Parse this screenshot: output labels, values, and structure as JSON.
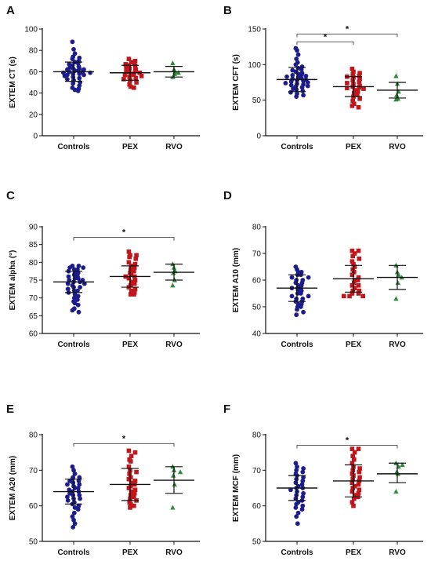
{
  "colors": {
    "Controls": "#1c1c8c",
    "PEX": "#c0171c",
    "RVO": "#2e8b3a",
    "axis": "#111111"
  },
  "marker_shapes": {
    "Controls": "circle",
    "PEX": "square",
    "RVO": "triangle"
  },
  "chart_data": [
    {
      "type": "scatter",
      "panel": "A",
      "ylabel": "EXTEM CT (s)",
      "categories": [
        "Controls",
        "PEX",
        "RVO"
      ],
      "ylim": [
        0,
        100
      ],
      "yticks": [
        0,
        20,
        40,
        60,
        80,
        100
      ],
      "series": [
        {
          "name": "Controls",
          "mean": 60,
          "sd_low": 51,
          "sd_high": 69,
          "values": [
            88,
            81,
            77,
            74,
            73,
            72,
            70,
            69,
            68,
            67,
            66,
            65,
            64,
            63,
            63,
            62,
            62,
            61,
            61,
            60,
            60,
            59,
            59,
            58,
            58,
            57,
            57,
            56,
            55,
            54,
            53,
            52,
            50,
            49,
            47,
            45,
            44,
            43,
            42
          ]
        },
        {
          "name": "PEX",
          "mean": 59,
          "sd_low": 52,
          "sd_high": 66,
          "values": [
            72,
            70,
            69,
            68,
            67,
            66,
            65,
            64,
            63,
            62,
            61,
            61,
            60,
            59,
            58,
            57,
            57,
            56,
            55,
            54,
            53,
            52,
            50,
            48,
            46,
            45
          ]
        },
        {
          "name": "RVO",
          "mean": 60,
          "sd_low": 55,
          "sd_high": 65,
          "values": [
            68,
            62,
            60,
            59,
            58,
            55
          ]
        }
      ],
      "significance": []
    },
    {
      "type": "scatter",
      "panel": "B",
      "ylabel": "EXTEM CFT (s)",
      "categories": [
        "Controls",
        "PEX",
        "RVO"
      ],
      "ylim": [
        0,
        150
      ],
      "yticks": [
        0,
        50,
        100,
        150
      ],
      "series": [
        {
          "name": "Controls",
          "mean": 79,
          "sd_low": 62,
          "sd_high": 96,
          "values": [
            123,
            120,
            114,
            108,
            103,
            100,
            97,
            95,
            93,
            92,
            90,
            88,
            87,
            86,
            85,
            84,
            83,
            82,
            81,
            80,
            79,
            78,
            77,
            76,
            75,
            74,
            73,
            72,
            71,
            70,
            69,
            68,
            66,
            65,
            63,
            61,
            59,
            57,
            55
          ]
        },
        {
          "name": "PEX",
          "mean": 69,
          "sd_low": 55,
          "sd_high": 83,
          "values": [
            94,
            90,
            88,
            86,
            84,
            83,
            82,
            80,
            78,
            76,
            74,
            72,
            70,
            69,
            68,
            67,
            66,
            64,
            62,
            60,
            58,
            55,
            52,
            49,
            45,
            42,
            40
          ]
        },
        {
          "name": "RVO",
          "mean": 64,
          "sd_low": 53,
          "sd_high": 75,
          "values": [
            84,
            73,
            62,
            57,
            52,
            51
          ]
        }
      ],
      "significance": [
        {
          "from": "Controls",
          "to": "PEX",
          "label": "*",
          "y": 132
        },
        {
          "from": "Controls",
          "to": "RVO",
          "label": "*",
          "y": 143
        }
      ]
    },
    {
      "type": "scatter",
      "panel": "C",
      "ylabel": "EXTEM alpha (°)",
      "categories": [
        "Controls",
        "PEX",
        "RVO"
      ],
      "ylim": [
        60,
        90
      ],
      "yticks": [
        60,
        65,
        70,
        75,
        80,
        85,
        90
      ],
      "series": [
        {
          "name": "Controls",
          "mean": 74.5,
          "sd_low": 71.5,
          "sd_high": 77.5,
          "values": [
            79,
            79,
            78.5,
            78.5,
            78,
            78,
            77.5,
            77,
            77,
            76.5,
            76,
            76,
            75.5,
            75.5,
            75,
            75,
            74.5,
            74.5,
            74,
            74,
            73.5,
            73,
            73,
            72.5,
            72,
            72,
            71.5,
            71,
            70.5,
            70,
            69.5,
            69,
            68.5,
            68,
            67,
            66.5,
            66
          ]
        },
        {
          "name": "PEX",
          "mean": 76,
          "sd_low": 73,
          "sd_high": 79,
          "values": [
            83,
            82,
            82,
            81.5,
            81,
            80,
            79.5,
            79,
            78.5,
            78,
            77.5,
            77,
            76.5,
            76,
            76,
            75.5,
            75,
            74.5,
            74,
            73.5,
            73,
            72.5,
            72,
            71.5,
            71,
            71
          ]
        },
        {
          "name": "RVO",
          "mean": 77.2,
          "sd_low": 75,
          "sd_high": 79.5,
          "values": [
            79.5,
            78.5,
            77.5,
            77,
            75,
            73.5
          ]
        }
      ],
      "significance": [
        {
          "from": "Controls",
          "to": "RVO",
          "label": "*",
          "y": 87
        }
      ]
    },
    {
      "type": "scatter",
      "panel": "D",
      "ylabel": "EXTEM A10 (mm)",
      "categories": [
        "Controls",
        "PEX",
        "RVO"
      ],
      "ylim": [
        40,
        80
      ],
      "yticks": [
        40,
        50,
        60,
        70,
        80
      ],
      "series": [
        {
          "name": "Controls",
          "mean": 57,
          "sd_low": 52,
          "sd_high": 62,
          "values": [
            65,
            64,
            63,
            63,
            62,
            62,
            61,
            61,
            60,
            60,
            59,
            59,
            58,
            58,
            57,
            57,
            57,
            56,
            56,
            55,
            55,
            54,
            54,
            53,
            53,
            52,
            52,
            51,
            51,
            50,
            50,
            49,
            48,
            47
          ]
        },
        {
          "name": "PEX",
          "mean": 60.5,
          "sd_low": 55.5,
          "sd_high": 65.5,
          "values": [
            71,
            71,
            70,
            69,
            68,
            67,
            66,
            65,
            64,
            63,
            62,
            61,
            60,
            60,
            59,
            58,
            58,
            57,
            56,
            56,
            55,
            55,
            54,
            54,
            54
          ]
        },
        {
          "name": "RVO",
          "mean": 61,
          "sd_low": 56.5,
          "sd_high": 65.5,
          "values": [
            65.5,
            63,
            62,
            61,
            59,
            53
          ]
        }
      ],
      "significance": []
    },
    {
      "type": "scatter",
      "panel": "E",
      "ylabel": "EXTEM A20 (mm)",
      "categories": [
        "Controls",
        "PEX",
        "RVO"
      ],
      "ylim": [
        50,
        80
      ],
      "yticks": [
        50,
        60,
        70,
        80
      ],
      "series": [
        {
          "name": "Controls",
          "mean": 64,
          "sd_low": 60.5,
          "sd_high": 67.5,
          "values": [
            71,
            70,
            69,
            68,
            68,
            67.5,
            67,
            67,
            66.5,
            66,
            66,
            65.5,
            65,
            65,
            64.5,
            64,
            64,
            63.5,
            63,
            63,
            62.5,
            62,
            62,
            61.5,
            61,
            60.5,
            60,
            59.5,
            59,
            58,
            57,
            56,
            55,
            54
          ]
        },
        {
          "name": "PEX",
          "mean": 66,
          "sd_low": 61.5,
          "sd_high": 70.5,
          "values": [
            75.5,
            75,
            74,
            73,
            72.5,
            71,
            70,
            69.5,
            69,
            68,
            67.5,
            67,
            66.5,
            66,
            65.5,
            65,
            64.5,
            64,
            63.5,
            63,
            62.5,
            62,
            61.5,
            61,
            60.5,
            60,
            59.5
          ]
        },
        {
          "name": "RVO",
          "mean": 67.2,
          "sd_low": 63.5,
          "sd_high": 71,
          "values": [
            71,
            70,
            69.5,
            68.5,
            66,
            59.5
          ]
        }
      ],
      "significance": [
        {
          "from": "Controls",
          "to": "RVO",
          "label": "*",
          "y": 77.5
        }
      ]
    },
    {
      "type": "scatter",
      "panel": "F",
      "ylabel": "EXTEM MCF (mm)",
      "categories": [
        "Controls",
        "PEX",
        "RVO"
      ],
      "ylim": [
        50,
        80
      ],
      "yticks": [
        50,
        60,
        70,
        80
      ],
      "series": [
        {
          "name": "Controls",
          "mean": 65,
          "sd_low": 61.5,
          "sd_high": 68.5,
          "values": [
            72,
            71,
            70.5,
            70,
            69.5,
            69,
            68.5,
            68,
            67.5,
            67,
            66.5,
            66,
            65.5,
            65,
            65,
            64.5,
            64,
            63.5,
            63,
            62.5,
            62,
            61.5,
            61,
            60.5,
            60,
            59.5,
            59,
            58,
            57,
            55
          ]
        },
        {
          "name": "PEX",
          "mean": 67,
          "sd_low": 62.5,
          "sd_high": 71.5,
          "values": [
            76,
            76,
            75,
            74,
            73,
            72,
            71,
            70.5,
            70,
            69.5,
            69,
            68.5,
            68,
            67.5,
            67,
            66.5,
            66,
            65.5,
            65,
            64.5,
            64,
            63.5,
            63,
            62.5,
            62,
            61,
            60
          ]
        },
        {
          "name": "RVO",
          "mean": 69,
          "sd_low": 66.5,
          "sd_high": 72,
          "values": [
            72,
            71.5,
            71,
            69.5,
            69,
            64
          ]
        }
      ],
      "significance": [
        {
          "from": "Controls",
          "to": "RVO",
          "label": "*",
          "y": 77
        }
      ]
    }
  ]
}
